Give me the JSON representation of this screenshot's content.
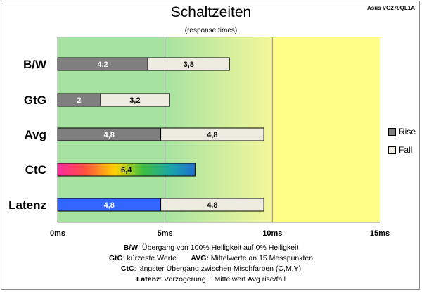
{
  "header": {
    "title": "Schaltzeiten",
    "subtitle": "(response times)",
    "monitor": "Asus VG279QL1A"
  },
  "chart_data": {
    "type": "bar",
    "stacked": true,
    "orientation": "horizontal",
    "title": "Schaltzeiten",
    "subtitle": "(response times)",
    "categories": [
      "B/W",
      "GtG",
      "Avg",
      "CtC",
      "Latenz"
    ],
    "xlim": [
      0,
      15
    ],
    "x_ticks": [
      "0ms",
      "5ms",
      "10ms",
      "15ms"
    ],
    "grid": "vertical",
    "legend": "right",
    "series": [
      {
        "name": "Rise",
        "color": "#7f7f7f",
        "values": [
          4.2,
          2,
          4.8,
          null,
          null
        ]
      },
      {
        "name": "Fall",
        "color": "#eeece1",
        "values": [
          3.8,
          3.2,
          4.8,
          null,
          null
        ]
      }
    ],
    "ctc": {
      "value": 6.4,
      "label": "6,4"
    },
    "latency": {
      "rise": 4.8,
      "fall": 4.8,
      "rise_color": "#3366ff",
      "fall_color": "#eeece1"
    },
    "value_labels": {
      "B/W": [
        "4,2",
        "3,8"
      ],
      "GtG": [
        "2",
        "3,2"
      ],
      "Avg": [
        "4,8",
        "4,8"
      ],
      "Latenz": [
        "4,8",
        "4,8"
      ]
    },
    "background_zones": [
      {
        "from": 0,
        "to": 5,
        "color": "green"
      },
      {
        "from": 5,
        "to": 10,
        "color": "green-to-yellow"
      },
      {
        "from": 10,
        "to": 15,
        "color": "yellow"
      }
    ]
  },
  "legend": {
    "rise": "Rise",
    "fall": "Fall"
  },
  "notes": {
    "bw_term": "B/W",
    "bw_text": ":  Übergang von 100% Helligkeit auf 0% Helligkeit",
    "gtg_term": "GtG",
    "gtg_text": ": kürzeste  Werte",
    "avg_term": "AVG:",
    "avg_text": " Mittelwerte an 15 Messpunkten",
    "ctc_term": "CtC",
    "ctc_text": ": längster Übergang zwischen Mischfarben (C,M,Y)",
    "lat_term": "Latenz",
    "lat_text": ": Verzögerung  + Mittelwert Avg rise/fall"
  }
}
